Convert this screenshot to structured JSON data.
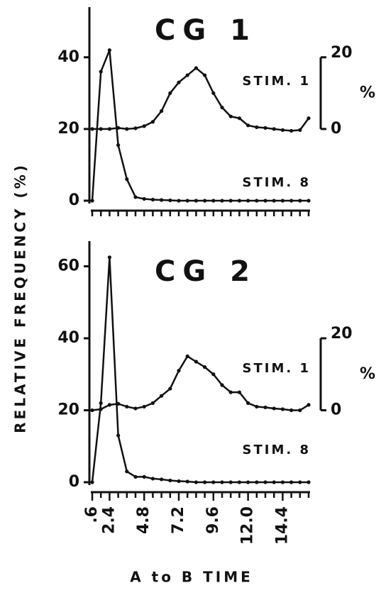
{
  "ylabel": "RELATIVE FREQUENCY (%)",
  "xlabel": "A to B TIME",
  "chart_data": [
    {
      "type": "line",
      "title": "CG 1",
      "series": [
        {
          "name": "STIM. 1",
          "color": "#111",
          "axis": "y2",
          "values": [
            0,
            0,
            0,
            0.3,
            0,
            0.2,
            0.8,
            2,
            5,
            10,
            13,
            15,
            17,
            15,
            10,
            6,
            3.5,
            3,
            1,
            0.5,
            0.3,
            0,
            -0.3,
            -0.5,
            -0.3,
            3
          ]
        },
        {
          "name": "STIM. 8",
          "color": "#111",
          "values": [
            0,
            36,
            42,
            15.5,
            6,
            1,
            0.5,
            0.3,
            0.2,
            0.1,
            0,
            0,
            0,
            0,
            0,
            0,
            0,
            0,
            0,
            0,
            0,
            0,
            0,
            0,
            0,
            0
          ]
        }
      ],
      "ylim": [
        0,
        54
      ],
      "yticks": [
        0,
        20,
        40
      ],
      "y2lim": [
        -20,
        34
      ],
      "y2ticks": [
        0,
        20
      ],
      "y2label": "%"
    },
    {
      "type": "line",
      "title": "CG 2",
      "categories": [
        ".6",
        null,
        "2.4",
        null,
        null,
        null,
        "4.8",
        null,
        null,
        null,
        "7.2",
        null,
        null,
        null,
        "9.6",
        null,
        null,
        null,
        "12.0",
        null,
        null,
        null,
        "14.4",
        null,
        null,
        null
      ],
      "series": [
        {
          "name": "STIM. 1",
          "color": "#111",
          "axis": "y2",
          "values": [
            0,
            0.3,
            1.5,
            1.8,
            1,
            0.5,
            1,
            2,
            4,
            6,
            11,
            15,
            13.5,
            12,
            10,
            7,
            5,
            5,
            2,
            1,
            0.8,
            0.5,
            0.3,
            0,
            0,
            1.5
          ]
        },
        {
          "name": "STIM. 8",
          "color": "#111",
          "values": [
            0,
            22,
            62.5,
            13,
            3,
            1.5,
            1.5,
            1,
            0.8,
            0.5,
            0.3,
            0.2,
            0,
            0,
            0,
            0,
            0,
            0,
            0,
            0,
            0,
            0,
            0,
            0,
            0,
            0
          ]
        }
      ],
      "ylim": [
        0,
        67
      ],
      "yticks": [
        0,
        20,
        40,
        60
      ],
      "y2lim": [
        -20,
        47
      ],
      "y2ticks": [
        0,
        20
      ],
      "y2label": "%"
    }
  ]
}
